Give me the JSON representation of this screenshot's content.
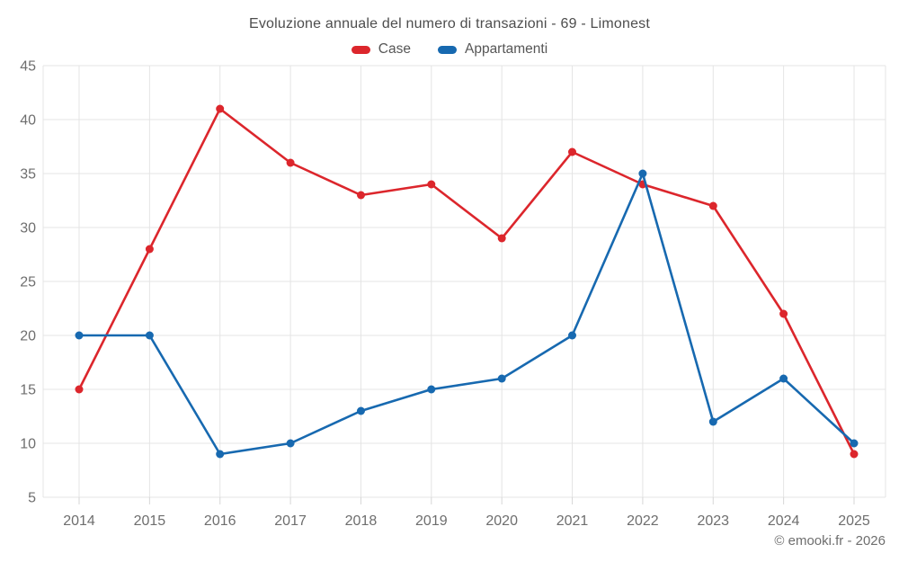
{
  "chart_data": {
    "type": "line",
    "title": "Evoluzione annuale del numero di transazioni - 69 - Limonest",
    "x": [
      "2014",
      "2015",
      "2016",
      "2017",
      "2018",
      "2019",
      "2020",
      "2021",
      "2022",
      "2023",
      "2024",
      "2025"
    ],
    "series": [
      {
        "name": "Case",
        "color": "#dc262c",
        "values": [
          15,
          28,
          41,
          36,
          33,
          34,
          29,
          37,
          34,
          32,
          22,
          9
        ]
      },
      {
        "name": "Appartamenti",
        "color": "#1769b0",
        "values": [
          20,
          20,
          9,
          10,
          13,
          15,
          16,
          20,
          35,
          12,
          16,
          10
        ]
      }
    ],
    "xlabel": "",
    "ylabel": "",
    "ylim": [
      5,
      45
    ],
    "ytick_step": 5,
    "yticks": [
      5,
      10,
      15,
      20,
      25,
      30,
      35,
      40,
      45
    ],
    "grid": true,
    "legend_position": "top"
  },
  "footer": {
    "credit": "© emooki.fr - 2026"
  },
  "colors": {
    "case_red": "#dc262c",
    "appartamenti_blue": "#1769b0",
    "grid_line": "#e4e4e4",
    "axis_tick_text": "#6e6e6e"
  }
}
